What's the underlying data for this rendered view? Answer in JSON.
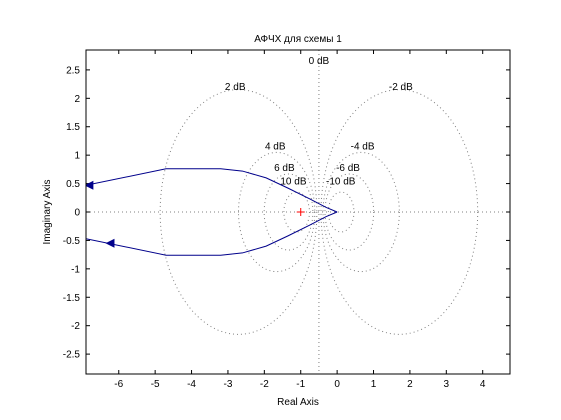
{
  "chart_data": {
    "type": "line",
    "title": "АФЧХ для схемы 1",
    "xlabel": "Real Axis",
    "ylabel": "Imaginary Axis",
    "xlim": [
      -6.9,
      4.75
    ],
    "ylim": [
      -2.85,
      2.85
    ],
    "xticks": [
      -6,
      -5,
      -4,
      -3,
      -2,
      -1,
      0,
      1,
      2,
      3,
      4
    ],
    "yticks": [
      -2.5,
      -2,
      -1.5,
      -1,
      -0.5,
      0,
      0.5,
      1,
      1.5,
      2,
      2.5
    ],
    "grid": "nichols-db-contours",
    "colors": {
      "series": "#00008b",
      "grid": "#808080",
      "critical_point": "#ff0000"
    },
    "critical_point": {
      "x": -1,
      "y": 0,
      "marker": "+"
    },
    "grid_db": [
      {
        "label": "0 dB",
        "db": 0
      },
      {
        "label": "2 dB",
        "db": 2
      },
      {
        "label": "-2 dB",
        "db": -2
      },
      {
        "label": "4 dB",
        "db": 4
      },
      {
        "label": "-4 dB",
        "db": -4
      },
      {
        "label": "6 dB",
        "db": 6
      },
      {
        "label": "-6 dB",
        "db": -6
      },
      {
        "label": "10 dB",
        "db": 10
      },
      {
        "label": "-10 dB",
        "db": -10
      }
    ],
    "series": [
      {
        "x": [
          -6.9,
          -4.7,
          -3.2,
          -2.6,
          -1.95,
          -1.35,
          -0.75,
          -0.3,
          0.0
        ],
        "y": [
          0.47,
          0.76,
          0.76,
          0.72,
          0.6,
          0.42,
          0.23,
          0.08,
          0.0
        ]
      },
      {
        "x": [
          0.0,
          -0.3,
          -0.75,
          -1.35,
          -1.95,
          -2.6,
          -3.2,
          -4.7,
          -6.9
        ],
        "y": [
          0.0,
          -0.08,
          -0.23,
          -0.42,
          -0.6,
          -0.72,
          -0.76,
          -0.76,
          -0.47
        ]
      }
    ]
  }
}
